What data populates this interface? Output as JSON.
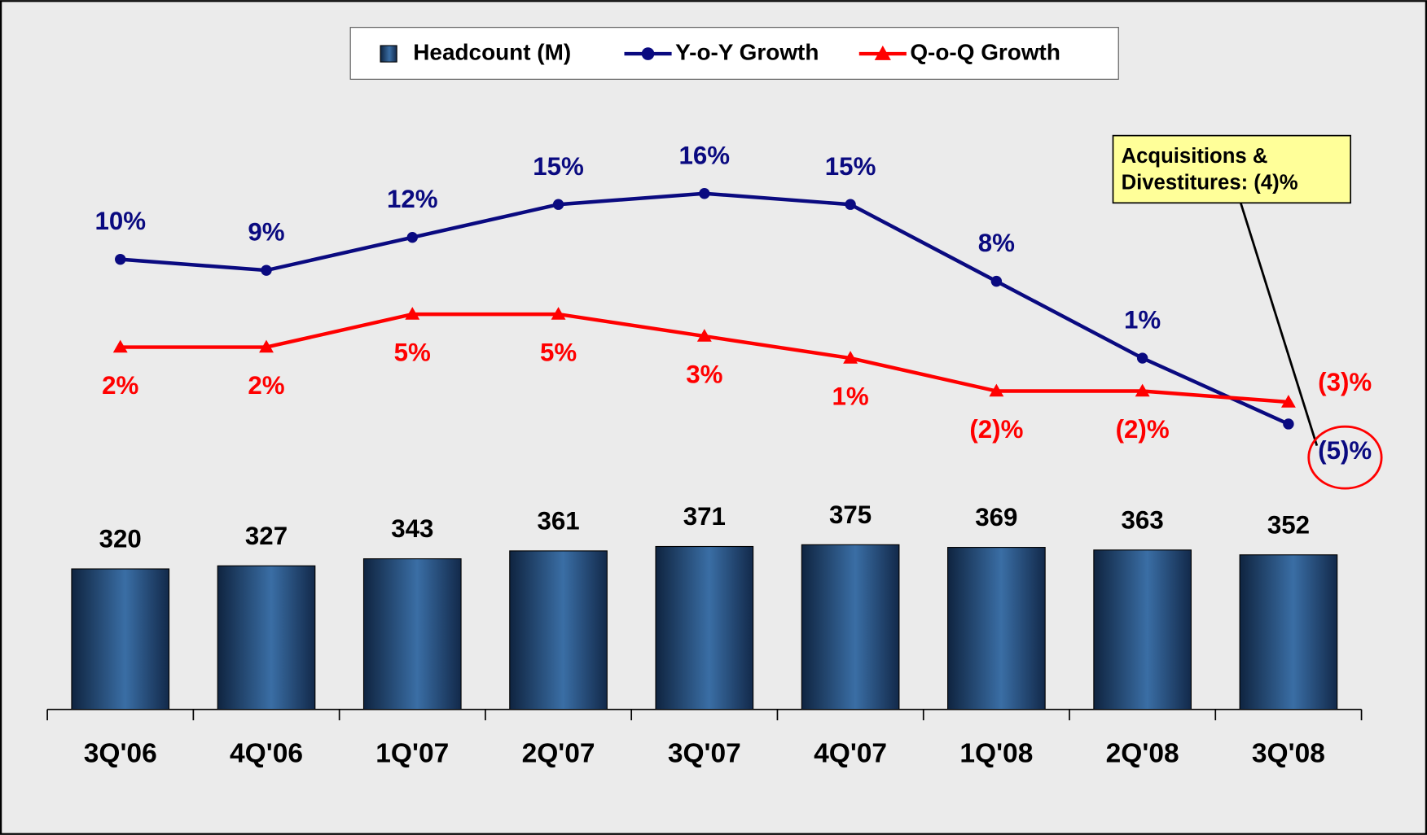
{
  "chart_data": {
    "type": "bar",
    "categories": [
      "3Q'06",
      "4Q'06",
      "1Q'07",
      "2Q'07",
      "3Q'07",
      "4Q'07",
      "1Q'08",
      "2Q'08",
      "3Q'08"
    ],
    "ylim": [
      0,
      1400
    ],
    "y2lim": [
      -31,
      25
    ],
    "legend": "top",
    "series": [
      {
        "name": "Headcount (M)",
        "type": "bar",
        "color": "#1f4e79",
        "values": [
          320,
          327,
          343,
          361,
          371,
          375,
          369,
          363,
          352
        ]
      },
      {
        "name": "Y-o-Y Growth",
        "type": "line",
        "axis": "y2",
        "marker": "circle",
        "color": "#0a0a80",
        "values": [
          10,
          9,
          12,
          15,
          16,
          15,
          8,
          1,
          -5
        ],
        "value_labels": [
          "10%",
          "9%",
          "12%",
          "15%",
          "16%",
          "15%",
          "8%",
          "1%",
          "(5)%"
        ]
      },
      {
        "name": "Q-o-Q Growth",
        "type": "line",
        "axis": "y2",
        "marker": "triangle",
        "color": "#ff0000",
        "values": [
          2,
          2,
          5,
          5,
          3,
          1,
          -2,
          -2,
          -3
        ],
        "value_labels": [
          "2%",
          "2%",
          "5%",
          "5%",
          "3%",
          "1%",
          "(2)%",
          "(2)%",
          "(3)%"
        ]
      }
    ],
    "annotation": [
      "Acquisitions &",
      "Divestitures: (4)%"
    ]
  }
}
